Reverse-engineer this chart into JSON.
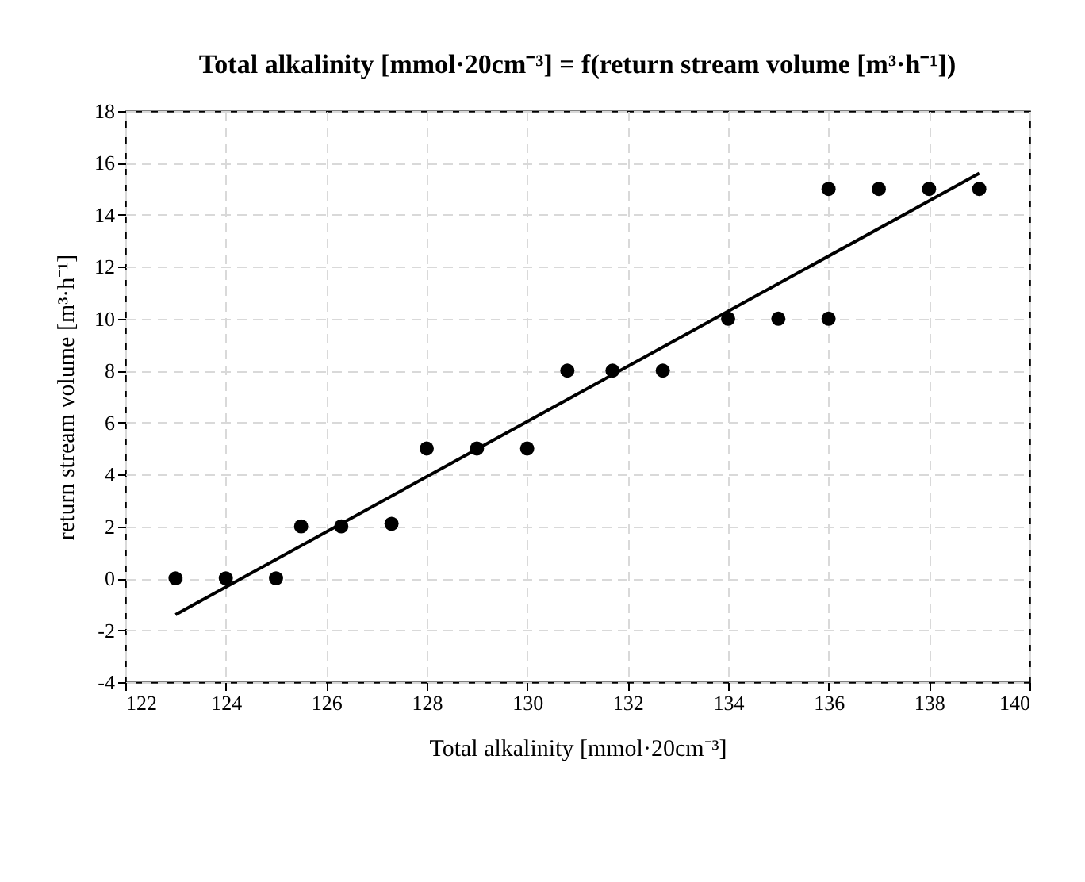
{
  "chart_data": {
    "type": "scatter",
    "title": "Total alkalinity [mmol·20cm⁻³] = f(return stream volume [m³·h⁻¹])",
    "xlabel": "Total alkalinity [mmol·20cm⁻³]",
    "ylabel": "return stream volume [m³·h⁻¹]",
    "xlim": [
      122,
      140
    ],
    "xticks": [
      122,
      124,
      126,
      128,
      130,
      132,
      134,
      136,
      138,
      140
    ],
    "ylim": [
      -4,
      18
    ],
    "yticks": [
      -4,
      -2,
      0,
      2,
      4,
      6,
      8,
      10,
      12,
      14,
      16,
      18
    ],
    "grid": true,
    "series": [
      {
        "color": "#000000",
        "marker": "circle",
        "x": [
          123,
          124,
          125,
          125.5,
          126.3,
          127.3,
          128,
          129,
          130,
          130.8,
          131.7,
          132.7,
          134,
          135,
          136,
          136,
          137,
          138,
          139
        ],
        "values": [
          0,
          0,
          0,
          2,
          2,
          2.1,
          5,
          5,
          5,
          8,
          8,
          8,
          10,
          10,
          10,
          15,
          15,
          15,
          15
        ]
      },
      {
        "type": "line",
        "color": "#000000",
        "line_style": "solid",
        "x": [
          123,
          139
        ],
        "values": [
          -1.4,
          15.6
        ]
      }
    ]
  }
}
